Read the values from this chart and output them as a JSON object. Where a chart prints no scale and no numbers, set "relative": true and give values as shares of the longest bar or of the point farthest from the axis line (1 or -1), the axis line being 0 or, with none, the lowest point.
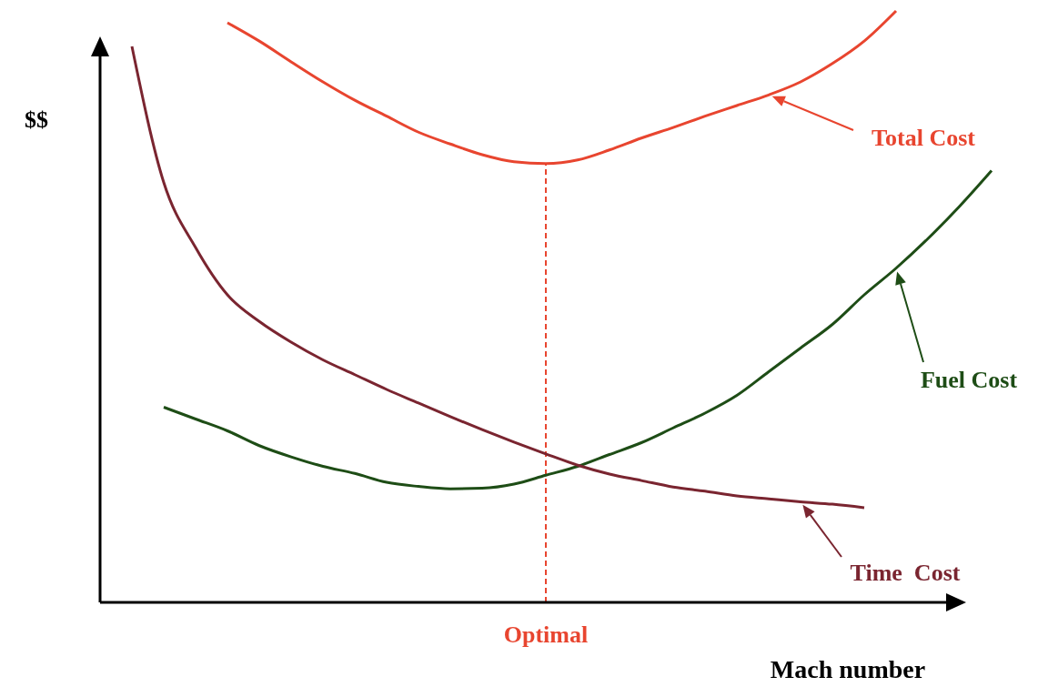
{
  "chart_data": {
    "type": "line",
    "relative": true,
    "xlabel": "Mach number",
    "ylabel": "$$",
    "categories": [
      null,
      null,
      null,
      null,
      null,
      null,
      null,
      null,
      null,
      null,
      null,
      null,
      null,
      null,
      null,
      null,
      null,
      null,
      null,
      null,
      null,
      null,
      null,
      null,
      null,
      null,
      null,
      null
    ],
    "series": [
      {
        "name": "Total Cost",
        "color": "#e8452f",
        "values": [
          null,
          null,
          null,
          0.98,
          0.949,
          0.914,
          0.88,
          0.849,
          0.822,
          0.795,
          0.775,
          0.757,
          0.745,
          0.742,
          0.748,
          0.765,
          0.785,
          0.803,
          0.822,
          0.84,
          0.858,
          0.88,
          0.911,
          0.949,
          1.0,
          null,
          null,
          null
        ]
      },
      {
        "name": "Fuel Cost",
        "color": "#1e4d16",
        "values": [
          null,
          0.33,
          0.31,
          0.29,
          0.265,
          0.246,
          0.23,
          0.218,
          0.203,
          0.196,
          0.192,
          0.193,
          0.2,
          0.215,
          0.23,
          0.25,
          0.27,
          0.295,
          0.32,
          0.35,
          0.39,
          0.43,
          0.47,
          0.52,
          0.565,
          0.615,
          0.67,
          0.73
        ]
      },
      {
        "name": "Time  Cost",
        "color": "#7a2530",
        "values": [
          0.94,
          0.71,
          0.6,
          0.52,
          0.475,
          0.44,
          0.41,
          0.385,
          0.36,
          0.337,
          0.314,
          0.292,
          0.271,
          0.251,
          0.232,
          0.217,
          0.206,
          0.195,
          0.188,
          0.18,
          0.175,
          0.17,
          0.166,
          0.16,
          null,
          null,
          null,
          null
        ]
      }
    ],
    "annotations": [
      "Optimal"
    ],
    "marker": "none",
    "line_style": "solid"
  }
}
